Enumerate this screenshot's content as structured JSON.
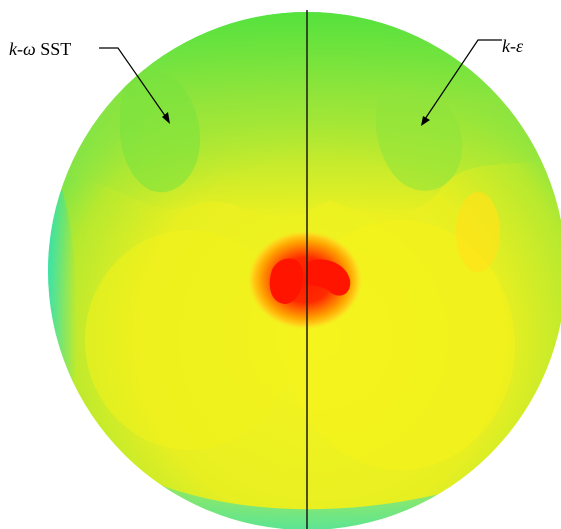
{
  "figure": {
    "left_model": {
      "prefix": "k",
      "dash": "-",
      "symbol": "ω",
      "suffix": " SST"
    },
    "right_model": {
      "prefix": "k",
      "dash": "-",
      "symbol": "ε"
    },
    "colormap": {
      "low": "#00e0ff",
      "mid_low": "#3fe88a",
      "mid": "#8ee642",
      "mid_high": "#f4f217",
      "high": "#ff9a00",
      "peak": "#ff1800"
    }
  }
}
